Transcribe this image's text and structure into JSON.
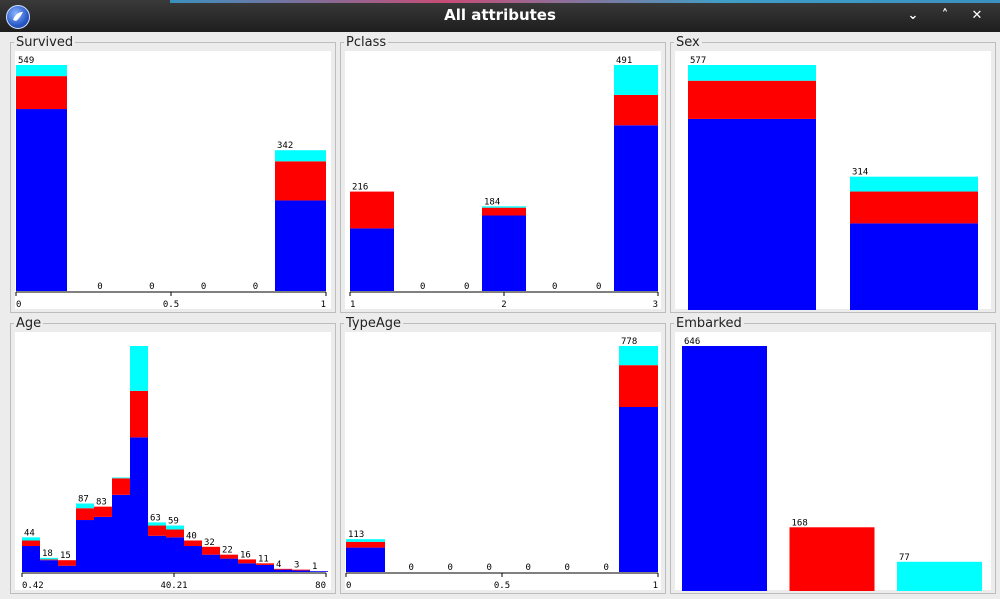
{
  "window": {
    "title": "All attributes",
    "buttons": [
      {
        "name": "minimize-button",
        "glyph": "⌄"
      },
      {
        "name": "maximize-button",
        "glyph": "˄"
      },
      {
        "name": "close-button",
        "glyph": "✕"
      }
    ]
  },
  "colors": {
    "class0": "#0000ff",
    "class1": "#ff0000",
    "class2": "#00ffff"
  },
  "chart_data": [
    {
      "type": "bar",
      "title": "Survived",
      "bins": [
        {
          "label": "549",
          "stack": [
            442,
            80,
            27
          ]
        },
        {
          "label": "0",
          "stack": [
            0,
            0,
            0
          ]
        },
        {
          "label": "0",
          "stack": [
            0,
            0,
            0
          ]
        },
        {
          "label": "0",
          "stack": [
            0,
            0,
            0
          ]
        },
        {
          "label": "0",
          "stack": [
            0,
            0,
            0
          ]
        },
        {
          "label": "342",
          "stack": [
            220,
            95,
            27
          ]
        }
      ],
      "ticks": [
        "0",
        "0.5",
        "1"
      ],
      "ymax": 549
    },
    {
      "type": "bar",
      "title": "Pclass",
      "bins": [
        {
          "label": "216",
          "stack": [
            136,
            80,
            0
          ]
        },
        {
          "label": "0",
          "stack": [
            0,
            0,
            0
          ]
        },
        {
          "label": "0",
          "stack": [
            0,
            0,
            0
          ]
        },
        {
          "label": "184",
          "stack": [
            164,
            17,
            3
          ]
        },
        {
          "label": "0",
          "stack": [
            0,
            0,
            0
          ]
        },
        {
          "label": "0",
          "stack": [
            0,
            0,
            0
          ]
        },
        {
          "label": "491",
          "stack": [
            360,
            66,
            65
          ]
        }
      ],
      "ticks": [
        "1",
        "2",
        "3"
      ],
      "ymax": 491
    },
    {
      "type": "bar",
      "title": "Sex",
      "bins": [
        {
          "label": "577",
          "stack": [
            450,
            90,
            37
          ]
        },
        {
          "label": "314",
          "stack": [
            204,
            75,
            35
          ]
        }
      ],
      "ticks": [],
      "ymax": 577
    },
    {
      "type": "bar",
      "title": "Age",
      "bins": [
        {
          "label": "44",
          "stack": [
            33,
            7,
            4
          ]
        },
        {
          "label": "18",
          "stack": [
            15,
            1,
            2
          ]
        },
        {
          "label": "15",
          "stack": [
            8,
            7,
            0
          ]
        },
        {
          "label": "87",
          "stack": [
            66,
            15,
            6
          ]
        },
        {
          "label": "83",
          "stack": [
            70,
            13,
            0
          ]
        },
        {
          "label": "",
          "stack": [
            98,
            21,
            1
          ]
        },
        {
          "label": "",
          "stack": [
            171,
            59,
            57
          ]
        },
        {
          "label": "63",
          "stack": [
            46,
            13,
            4
          ]
        },
        {
          "label": "59",
          "stack": [
            44,
            10,
            5
          ]
        },
        {
          "label": "40",
          "stack": [
            33,
            7,
            0
          ]
        },
        {
          "label": "32",
          "stack": [
            22,
            10,
            0
          ]
        },
        {
          "label": "22",
          "stack": [
            17,
            5,
            0
          ]
        },
        {
          "label": "16",
          "stack": [
            11,
            5,
            0
          ]
        },
        {
          "label": "11",
          "stack": [
            9,
            2,
            0
          ]
        },
        {
          "label": "4",
          "stack": [
            3,
            1,
            0
          ]
        },
        {
          "label": "3",
          "stack": [
            2,
            1,
            0
          ]
        },
        {
          "label": "1",
          "stack": [
            1,
            0,
            0
          ]
        }
      ],
      "ticks": [
        "0.42",
        "40.21",
        "80"
      ],
      "ymax": 287
    },
    {
      "type": "bar",
      "title": "TypeAge",
      "bins": [
        {
          "label": "113",
          "stack": [
            84,
            20,
            9
          ]
        },
        {
          "label": "0",
          "stack": [
            0,
            0,
            0
          ]
        },
        {
          "label": "0",
          "stack": [
            0,
            0,
            0
          ]
        },
        {
          "label": "0",
          "stack": [
            0,
            0,
            0
          ]
        },
        {
          "label": "0",
          "stack": [
            0,
            0,
            0
          ]
        },
        {
          "label": "0",
          "stack": [
            0,
            0,
            0
          ]
        },
        {
          "label": "0",
          "stack": [
            0,
            0,
            0
          ]
        },
        {
          "label": "778",
          "stack": [
            568,
            144,
            66
          ]
        }
      ],
      "ticks": [
        "0",
        "0.5",
        "1"
      ],
      "ymax": 778
    },
    {
      "type": "bar",
      "title": "Embarked",
      "bins": [
        {
          "label": "646",
          "stack": [
            646,
            0,
            0
          ]
        },
        {
          "label": "168",
          "stack": [
            0,
            168,
            0
          ]
        },
        {
          "label": "77",
          "stack": [
            0,
            0,
            77
          ]
        }
      ],
      "ticks": [],
      "ymax": 646
    }
  ]
}
